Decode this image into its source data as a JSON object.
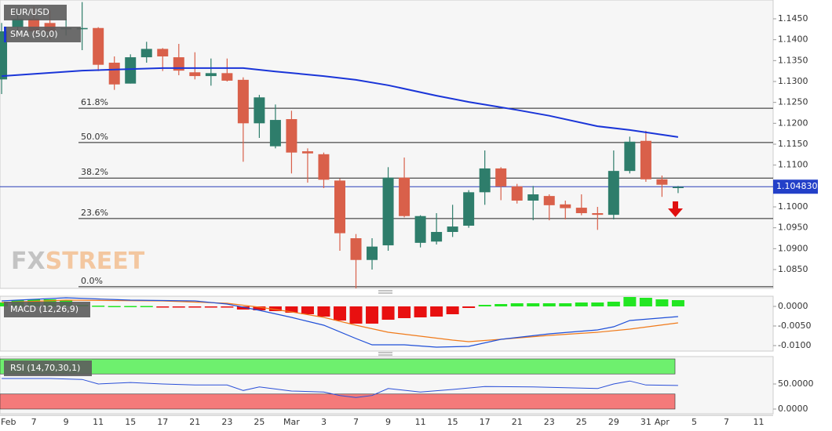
{
  "chart_data": [
    {
      "type": "candlestick",
      "title": "EUR/USD",
      "watermark": {
        "prefix": "FX",
        "suffix": "STREET"
      },
      "x": [
        0,
        1,
        2,
        3,
        4,
        5,
        6,
        7,
        8,
        9,
        10,
        11,
        12,
        13,
        14,
        15,
        16,
        17,
        18,
        19,
        20,
        21,
        22,
        23,
        24,
        25,
        26,
        27,
        28,
        29,
        30,
        31,
        32,
        33,
        34,
        35,
        36,
        37,
        38,
        39,
        40,
        41,
        42
      ],
      "open": [
        1.1305,
        1.143,
        1.145,
        1.144,
        1.1425,
        1.1425,
        1.1428,
        1.1345,
        1.1295,
        1.1358,
        1.1378,
        1.1358,
        1.1322,
        1.1313,
        1.132,
        1.1304,
        1.12,
        1.1145,
        1.121,
        1.1133,
        1.1126,
        1.1063,
        1.0925,
        1.0873,
        1.0908,
        1.107,
        1.0914,
        1.0917,
        1.094,
        1.0955,
        1.1035,
        1.1092,
        1.1049,
        1.1015,
        1.1026,
        1.1006,
        1.0998,
        1.0985,
        1.0981,
        1.1086,
        1.1158,
        1.1066,
        1.1045
      ],
      "high": [
        1.144,
        1.147,
        1.148,
        1.147,
        1.145,
        1.149,
        1.143,
        1.136,
        1.1365,
        1.1395,
        1.138,
        1.139,
        1.137,
        1.1355,
        1.1355,
        1.131,
        1.1268,
        1.1245,
        1.123,
        1.114,
        1.113,
        1.1068,
        1.0935,
        1.0925,
        1.1095,
        1.1118,
        1.098,
        1.0985,
        1.1005,
        1.104,
        1.1135,
        1.1095,
        1.1055,
        1.105,
        1.103,
        1.1015,
        1.103,
        1.1,
        1.1135,
        1.1168,
        1.1182,
        1.1075,
        1.105
      ],
      "low": [
        1.127,
        1.142,
        1.141,
        1.14,
        1.141,
        1.1375,
        1.1325,
        1.128,
        1.1295,
        1.1345,
        1.1325,
        1.1315,
        1.1305,
        1.129,
        1.13,
        1.1108,
        1.1165,
        1.114,
        1.108,
        1.1058,
        1.1045,
        1.0895,
        1.0805,
        1.085,
        1.0895,
        1.0975,
        1.0903,
        1.091,
        1.0928,
        1.095,
        1.1005,
        1.1016,
        1.1008,
        1.0968,
        1.0968,
        1.097,
        1.098,
        1.0945,
        1.097,
        1.108,
        1.106,
        1.1024,
        1.1033
      ],
      "close": [
        1.142,
        1.145,
        1.142,
        1.142,
        1.1428,
        1.1428,
        1.134,
        1.1293,
        1.1358,
        1.1378,
        1.136,
        1.1326,
        1.1313,
        1.132,
        1.1302,
        1.12,
        1.1262,
        1.1208,
        1.113,
        1.1128,
        1.1065,
        1.0937,
        1.0873,
        1.0905,
        1.107,
        1.0978,
        1.0978,
        1.094,
        1.0953,
        1.1035,
        1.1092,
        1.1049,
        1.1015,
        1.103,
        1.1004,
        1.0997,
        1.0985,
        1.0981,
        1.1086,
        1.1156,
        1.1066,
        1.1053,
        1.1048
      ],
      "up_color": "#2e7d6b",
      "down_color": "#d9604a",
      "overlays": [
        {
          "name": "SMA (50,0)",
          "color": "#1a35d8",
          "x": [
            0,
            5,
            10,
            15,
            17,
            20,
            22,
            24,
            27,
            29,
            32,
            34,
            37,
            39,
            42
          ],
          "values": [
            1.1313,
            1.1326,
            1.1332,
            1.1332,
            1.1324,
            1.1313,
            1.1304,
            1.1291,
            1.1266,
            1.1251,
            1.1232,
            1.1218,
            1.1193,
            1.1184,
            1.1167
          ]
        }
      ],
      "levels": [
        {
          "label": "61.8%",
          "value": 1.1236
        },
        {
          "label": "50.0%",
          "value": 1.1154
        },
        {
          "label": "38.2%",
          "value": 1.1069
        },
        {
          "label": "23.6%",
          "value": 1.0972
        },
        {
          "label": "0.0%",
          "value": 1.0809
        }
      ],
      "last_price": {
        "value": 1.10483,
        "label": "1.104830"
      },
      "ylim": [
        1.0805,
        1.1495
      ],
      "yticks": [
        {
          "value": 1.085,
          "label": "1.0850"
        },
        {
          "value": 1.09,
          "label": "1.0900"
        },
        {
          "value": 1.095,
          "label": "1.0950"
        },
        {
          "value": 1.1,
          "label": "1.1000"
        },
        {
          "value": 1.105,
          "label": "1.1050"
        },
        {
          "value": 1.11,
          "label": "1.1100"
        },
        {
          "value": 1.115,
          "label": "1.1150"
        },
        {
          "value": 1.12,
          "label": "1.1200"
        },
        {
          "value": 1.125,
          "label": "1.1250"
        },
        {
          "value": 1.13,
          "label": "1.1300"
        },
        {
          "value": 1.135,
          "label": "1.1350"
        },
        {
          "value": 1.14,
          "label": "1.1400"
        },
        {
          "value": 1.145,
          "label": "1.1450"
        }
      ],
      "xlim": [
        -0.1,
        47.9
      ],
      "xticks": [
        {
          "value": 0,
          "label": "Feb"
        },
        {
          "value": 2,
          "label": "7"
        },
        {
          "value": 4,
          "label": "9"
        },
        {
          "value": 6,
          "label": "11"
        },
        {
          "value": 8,
          "label": "15"
        },
        {
          "value": 10,
          "label": "17"
        },
        {
          "value": 12,
          "label": "21"
        },
        {
          "value": 14,
          "label": "23"
        },
        {
          "value": 16,
          "label": "25"
        },
        {
          "value": 18,
          "label": "Mar"
        },
        {
          "value": 20,
          "label": "3"
        },
        {
          "value": 22,
          "label": "7"
        },
        {
          "value": 24,
          "label": "9"
        },
        {
          "value": 26,
          "label": "11"
        },
        {
          "value": 28,
          "label": "15"
        },
        {
          "value": 30,
          "label": "17"
        },
        {
          "value": 32,
          "label": "21"
        },
        {
          "value": 34,
          "label": "23"
        },
        {
          "value": 36,
          "label": "25"
        },
        {
          "value": 38,
          "label": "29"
        },
        {
          "value": 40,
          "label": "31"
        },
        {
          "value": 41,
          "label": "Apr"
        },
        {
          "value": 43,
          "label": "5"
        },
        {
          "value": 45,
          "label": "7"
        },
        {
          "value": 47,
          "label": "11"
        }
      ]
    },
    {
      "type": "macd",
      "title": "MACD (12,26,9)",
      "x": [
        0,
        1,
        2,
        3,
        4,
        5,
        6,
        7,
        8,
        9,
        10,
        11,
        12,
        13,
        14,
        15,
        16,
        17,
        18,
        19,
        20,
        21,
        22,
        23,
        24,
        25,
        26,
        27,
        28,
        29,
        30,
        31,
        32,
        33,
        34,
        35,
        36,
        37,
        38,
        39,
        40,
        41,
        42
      ],
      "histogram": [
        0.001,
        0.0016,
        0.0018,
        0.0018,
        0.0016,
        0.0004,
        0.0002,
        0.0001,
        0.0001,
        0.0001,
        -0.0002,
        -0.0003,
        -0.0003,
        -0.0003,
        -0.0002,
        -0.0008,
        -0.001,
        -0.0012,
        -0.0016,
        -0.002,
        -0.0026,
        -0.0036,
        -0.0044,
        -0.0044,
        -0.0034,
        -0.003,
        -0.0028,
        -0.0026,
        -0.002,
        -0.0004,
        0.0004,
        0.0006,
        0.0008,
        0.0008,
        0.0008,
        0.0008,
        0.001,
        0.001,
        0.0012,
        0.0024,
        0.0022,
        0.0018,
        0.0016
      ],
      "up_color": "#22e622",
      "down_color": "#e81010",
      "macd_line": {
        "color": "#1f4fd8",
        "x": [
          0,
          4,
          8,
          12,
          14,
          16,
          18,
          20,
          22,
          23,
          25,
          27,
          29,
          31,
          34,
          37,
          38,
          39,
          42
        ],
        "values": [
          0.0014,
          0.0022,
          0.0016,
          0.0014,
          0.0006,
          -0.001,
          -0.0028,
          -0.0048,
          -0.0082,
          -0.0098,
          -0.0098,
          -0.0104,
          -0.0102,
          -0.0084,
          -0.007,
          -0.006,
          -0.0052,
          -0.0036,
          -0.0026
        ]
      },
      "signal_line": {
        "color": "#f07a1a",
        "x": [
          0,
          4,
          10,
          14,
          16,
          18,
          20,
          22,
          24,
          26,
          28,
          29,
          31,
          34,
          37,
          39,
          42
        ],
        "values": [
          0.001,
          0.0016,
          0.0014,
          0.0008,
          -0.0002,
          -0.0014,
          -0.0028,
          -0.0048,
          -0.0066,
          -0.0076,
          -0.0086,
          -0.009,
          -0.0084,
          -0.0074,
          -0.0066,
          -0.0058,
          -0.0042
        ]
      },
      "ylim": [
        -0.0114,
        0.0026
      ],
      "yticks": [
        {
          "value": 0,
          "label": "0.0000"
        },
        {
          "value": -0.005,
          "label": "-0.0050"
        },
        {
          "value": -0.01,
          "label": "-0.0100"
        }
      ]
    },
    {
      "type": "rsi",
      "title": "RSI (14,70,30,1)",
      "x": [
        0,
        3,
        5,
        6,
        8,
        10,
        12,
        14,
        15,
        16,
        18,
        20,
        21,
        22,
        23,
        24,
        26,
        28,
        30,
        33,
        37,
        38,
        39,
        40,
        42
      ],
      "values": [
        61,
        61,
        59,
        50,
        53,
        50,
        48,
        48,
        37,
        44,
        36,
        34,
        27,
        23,
        27,
        41,
        34,
        39,
        45,
        44,
        41,
        50,
        56,
        48,
        47
      ],
      "color": "#2a4fd8",
      "bands": [
        {
          "range": [
            70,
            100
          ],
          "color": "#6ef06e"
        },
        {
          "range": [
            0,
            30
          ],
          "color": "#f47a7a"
        }
      ],
      "ylim": [
        -9.4,
        104.7
      ],
      "yticks": [
        {
          "value": 50,
          "label": "50.0000"
        },
        {
          "value": 0,
          "label": "0.0000"
        }
      ]
    }
  ]
}
